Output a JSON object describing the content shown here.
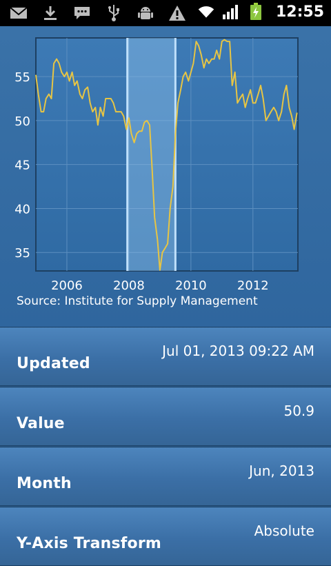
{
  "status_bar": {
    "time": "12:55",
    "icons": [
      "mail-icon",
      "download-icon",
      "chat-icon",
      "usb-icon",
      "android-debug-icon",
      "warning-icon",
      "wifi-icon",
      "signal-icon",
      "battery-charging-icon"
    ]
  },
  "chart": {
    "source": "Source: Institute for Supply Management"
  },
  "chart_data": {
    "type": "line",
    "title": "",
    "xlabel": "",
    "ylabel": "",
    "xlim": [
      2005.0,
      2013.45
    ],
    "ylim": [
      32.9,
      59.4
    ],
    "x_ticks": [
      "2006",
      "2008",
      "2010",
      "2012"
    ],
    "y_ticks": [
      "55",
      "50",
      "45",
      "40",
      "35"
    ],
    "grid": true,
    "line_color": "#e7c544",
    "shaded_region": {
      "from": 2007.95,
      "to": 2009.5
    },
    "series": [
      {
        "points": [
          [
            2005.0,
            55.2
          ],
          [
            2005.08,
            53.0
          ],
          [
            2005.17,
            51.0
          ],
          [
            2005.25,
            51.0
          ],
          [
            2005.33,
            52.5
          ],
          [
            2005.42,
            53.0
          ],
          [
            2005.5,
            52.5
          ],
          [
            2005.58,
            56.5
          ],
          [
            2005.67,
            57.0
          ],
          [
            2005.75,
            56.5
          ],
          [
            2005.83,
            55.5
          ],
          [
            2005.92,
            55.0
          ],
          [
            2006.0,
            55.5
          ],
          [
            2006.08,
            54.5
          ],
          [
            2006.17,
            55.5
          ],
          [
            2006.25,
            54.0
          ],
          [
            2006.33,
            54.5
          ],
          [
            2006.42,
            53.0
          ],
          [
            2006.5,
            52.5
          ],
          [
            2006.58,
            53.5
          ],
          [
            2006.67,
            53.8
          ],
          [
            2006.75,
            52.0
          ],
          [
            2006.83,
            51.0
          ],
          [
            2006.92,
            51.5
          ],
          [
            2007.0,
            49.5
          ],
          [
            2007.08,
            51.5
          ],
          [
            2007.17,
            50.5
          ],
          [
            2007.25,
            52.5
          ],
          [
            2007.33,
            52.5
          ],
          [
            2007.42,
            52.5
          ],
          [
            2007.5,
            52.0
          ],
          [
            2007.58,
            51.0
          ],
          [
            2007.67,
            51.0
          ],
          [
            2007.75,
            51.0
          ],
          [
            2007.83,
            50.5
          ],
          [
            2007.92,
            49.0
          ],
          [
            2008.0,
            50.3
          ],
          [
            2008.08,
            48.5
          ],
          [
            2008.17,
            47.5
          ],
          [
            2008.25,
            48.5
          ],
          [
            2008.33,
            48.8
          ],
          [
            2008.42,
            48.8
          ],
          [
            2008.5,
            49.8
          ],
          [
            2008.58,
            50.0
          ],
          [
            2008.67,
            49.5
          ],
          [
            2008.75,
            44.5
          ],
          [
            2008.83,
            39.0
          ],
          [
            2008.92,
            36.5
          ],
          [
            2009.0,
            33.0
          ],
          [
            2009.08,
            35.0
          ],
          [
            2009.17,
            35.5
          ],
          [
            2009.25,
            36.0
          ],
          [
            2009.33,
            40.0
          ],
          [
            2009.42,
            42.5
          ],
          [
            2009.5,
            48.5
          ],
          [
            2009.58,
            52.0
          ],
          [
            2009.67,
            53.5
          ],
          [
            2009.75,
            55.0
          ],
          [
            2009.83,
            55.5
          ],
          [
            2009.92,
            54.5
          ],
          [
            2010.0,
            55.5
          ],
          [
            2010.08,
            56.5
          ],
          [
            2010.17,
            59.0
          ],
          [
            2010.25,
            58.5
          ],
          [
            2010.33,
            57.5
          ],
          [
            2010.42,
            56.0
          ],
          [
            2010.5,
            57.0
          ],
          [
            2010.58,
            56.5
          ],
          [
            2010.67,
            57.0
          ],
          [
            2010.75,
            57.0
          ],
          [
            2010.83,
            58.0
          ],
          [
            2010.92,
            57.0
          ],
          [
            2011.0,
            59.0
          ],
          [
            2011.08,
            59.2
          ],
          [
            2011.17,
            59.0
          ],
          [
            2011.25,
            59.0
          ],
          [
            2011.33,
            54.0
          ],
          [
            2011.42,
            55.5
          ],
          [
            2011.5,
            52.0
          ],
          [
            2011.58,
            52.5
          ],
          [
            2011.67,
            53.0
          ],
          [
            2011.75,
            51.5
          ],
          [
            2011.83,
            52.5
          ],
          [
            2011.92,
            53.5
          ],
          [
            2012.0,
            52.0
          ],
          [
            2012.08,
            52.0
          ],
          [
            2012.17,
            53.0
          ],
          [
            2012.25,
            54.0
          ],
          [
            2012.33,
            52.5
          ],
          [
            2012.42,
            50.0
          ],
          [
            2012.5,
            50.5
          ],
          [
            2012.58,
            51.0
          ],
          [
            2012.67,
            51.5
          ],
          [
            2012.75,
            51.0
          ],
          [
            2012.83,
            50.0
          ],
          [
            2012.92,
            51.0
          ],
          [
            2013.0,
            53.0
          ],
          [
            2013.08,
            54.0
          ],
          [
            2013.17,
            51.5
          ],
          [
            2013.25,
            50.5
          ],
          [
            2013.33,
            49.0
          ],
          [
            2013.42,
            50.9
          ]
        ]
      }
    ]
  },
  "details": [
    {
      "label": "Updated",
      "value": "Jul 01, 2013 09:22 AM"
    },
    {
      "label": "Value",
      "value": "50.9"
    },
    {
      "label": "Month",
      "value": "Jun, 2013"
    },
    {
      "label": "Y-Axis Transform",
      "value": "Absolute"
    }
  ]
}
